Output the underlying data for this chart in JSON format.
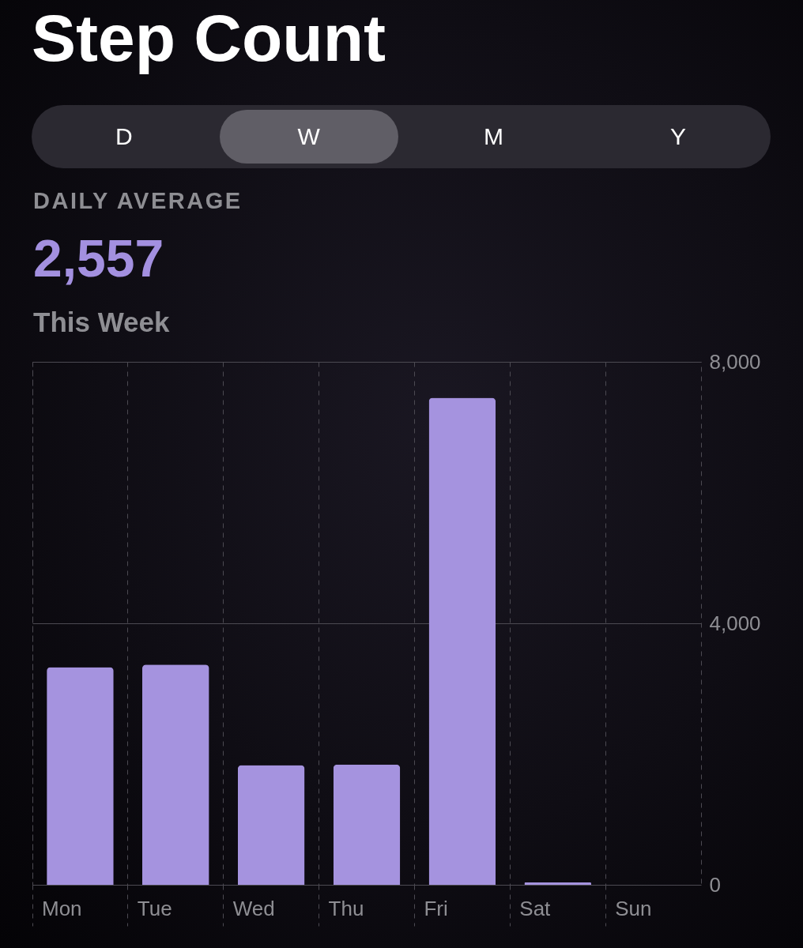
{
  "chart_data": {
    "type": "bar",
    "title": "Step Count",
    "annotations": [
      "D",
      "W",
      "M",
      "Y",
      "DAILY AVERAGE",
      "2,557",
      "This Week"
    ],
    "categories": [
      "Mon",
      "Tue",
      "Wed",
      "Thu",
      "Fri",
      "Sat",
      "Sun"
    ],
    "values": [
      3330,
      3370,
      1830,
      1840,
      7450,
      40,
      0
    ],
    "color": "#a593df",
    "ylim": [
      0,
      8000
    ],
    "yticks": [
      0,
      {
        "value": 4000,
        "label": "4,000"
      },
      {
        "value": 8000,
        "label": "8,000"
      }
    ],
    "grid": true
  }
}
